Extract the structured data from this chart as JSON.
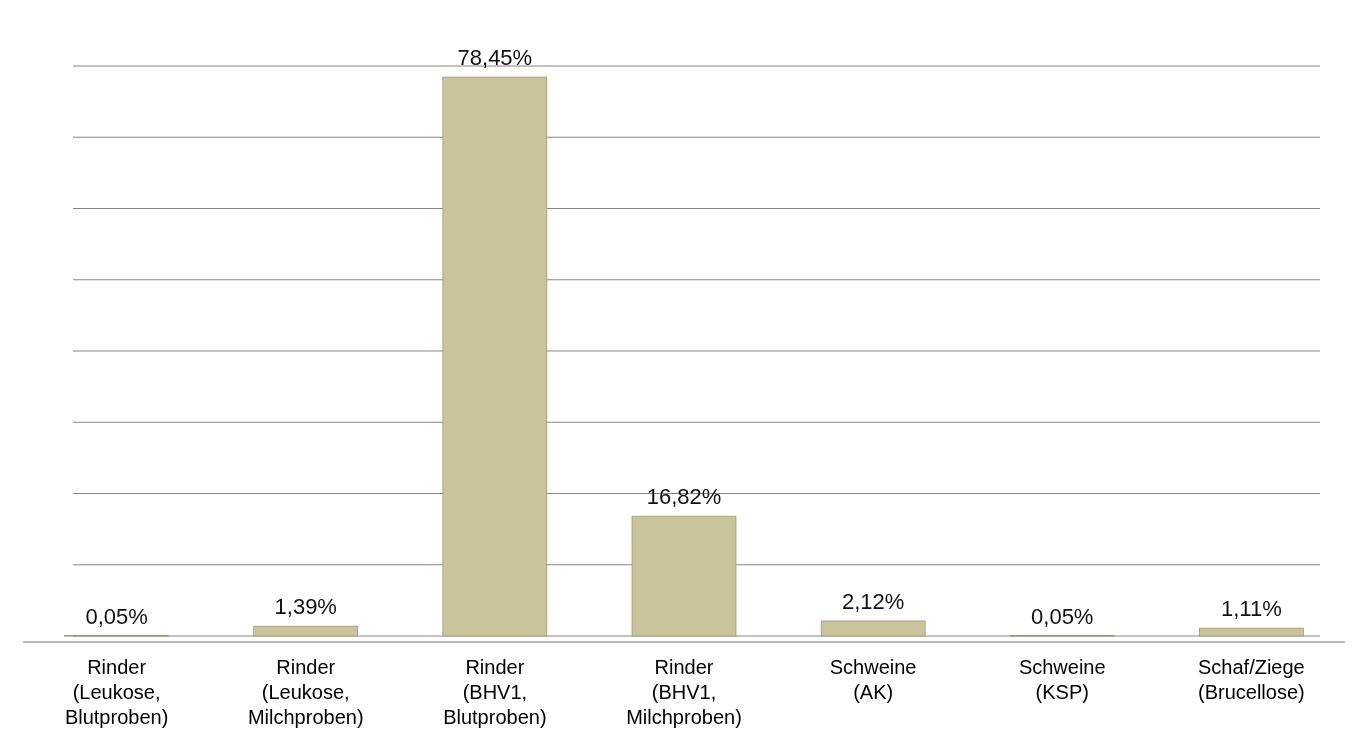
{
  "chart_data": {
    "type": "bar",
    "categories": [
      "Rinder (Leukose, Blutproben)",
      "Rinder (Leukose, Milchproben)",
      "Rinder (BHV1, Blutproben)",
      "Rinder (BHV1, Milchproben)",
      "Schweine (AK)",
      "Schweine (KSP)",
      "Schaf/Ziege (Brucellose)"
    ],
    "values": [
      0.05,
      1.39,
      78.45,
      16.82,
      2.12,
      0.05,
      1.11
    ],
    "value_labels": [
      "0,05%",
      "1,39%",
      "78,45%",
      "16,82%",
      "2,12%",
      "0,05%",
      "1,11%"
    ],
    "color": "#c9c49c",
    "ylim": [
      0,
      80
    ],
    "yticks": [
      {
        "value": 0,
        "label": null
      },
      {
        "value": 10,
        "label": null
      },
      {
        "value": 20,
        "label": null
      },
      {
        "value": 30,
        "label": null
      },
      {
        "value": 40,
        "label": null
      },
      {
        "value": 50,
        "label": null
      },
      {
        "value": 60,
        "label": null
      },
      {
        "value": 70,
        "label": null
      },
      {
        "value": 80,
        "label": null
      }
    ],
    "grid": true
  }
}
